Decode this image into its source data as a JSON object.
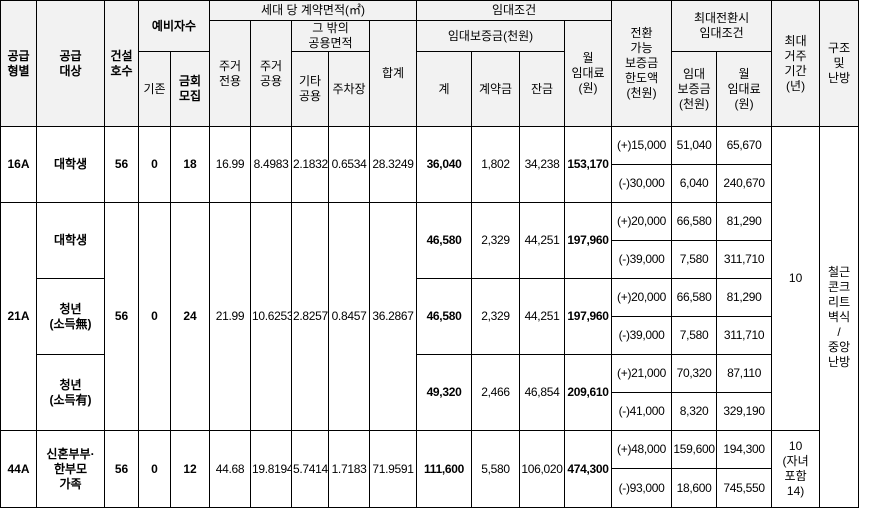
{
  "headers": {
    "supply_type": "공급\n형별",
    "supply_target": "공급\n대상",
    "built_units": "건설\n호수",
    "reserve": "예비자수",
    "reserve_existing": "기존",
    "reserve_this": "금회\n모집",
    "area_group": "세대 당 계약면적(㎡)",
    "residential_exclusive": "주거\n전용",
    "residential_common": "주거\n공용",
    "other_common_group": "그 밖의\n공용면적",
    "other_common": "기타\n공용",
    "parking": "주차장",
    "area_total": "합계",
    "lease_group": "임대조건",
    "deposit_group": "임대보증금(천원)",
    "deposit_total": "계",
    "deposit_contract": "계약금",
    "deposit_balance": "잔금",
    "monthly_rent": "월\n임대료\n(원)",
    "convertible_limit": "전환\n가능\n보증금\n한도액\n(천원)",
    "max_conversion_group": "최대전환시\n임대조건",
    "conv_deposit": "임대\n보증금\n(천원)",
    "conv_rent": "월\n임대료\n(원)",
    "max_residence": "최대\n거주\n기간\n(년)",
    "structure": "구조\n및\n난방"
  },
  "rows": [
    {
      "type": "16A",
      "units": "56",
      "reserve_existing": "0",
      "reserve_this": "18",
      "area": {
        "exclusive": "16.99",
        "common": "8.4983",
        "other": "2.1832",
        "parking": "0.6534",
        "total": "28.3249"
      },
      "targets": [
        {
          "name": "대학생",
          "deposit": "36,040",
          "contract": "1,802",
          "balance": "34,238",
          "rent": "153,170",
          "conversions": [
            {
              "limit": "(+)15,000",
              "deposit": "51,040",
              "rent": "65,670"
            },
            {
              "limit": "(-)30,000",
              "deposit": "6,040",
              "rent": "240,670"
            }
          ]
        }
      ]
    },
    {
      "type": "21A",
      "units": "56",
      "reserve_existing": "0",
      "reserve_this": "24",
      "area": {
        "exclusive": "21.99",
        "common": "10.6253",
        "other": "2.8257",
        "parking": "0.8457",
        "total": "36.2867"
      },
      "targets": [
        {
          "name": "대학생",
          "deposit": "46,580",
          "contract": "2,329",
          "balance": "44,251",
          "rent": "197,960",
          "conversions": [
            {
              "limit": "(+)20,000",
              "deposit": "66,580",
              "rent": "81,290"
            },
            {
              "limit": "(-)39,000",
              "deposit": "7,580",
              "rent": "311,710"
            }
          ]
        },
        {
          "name": "청년\n(소득無)",
          "deposit": "46,580",
          "contract": "2,329",
          "balance": "44,251",
          "rent": "197,960",
          "conversions": [
            {
              "limit": "(+)20,000",
              "deposit": "66,580",
              "rent": "81,290"
            },
            {
              "limit": "(-)39,000",
              "deposit": "7,580",
              "rent": "311,710"
            }
          ]
        },
        {
          "name": "청년\n(소득有)",
          "deposit": "49,320",
          "contract": "2,466",
          "balance": "46,854",
          "rent": "209,610",
          "conversions": [
            {
              "limit": "(+)21,000",
              "deposit": "70,320",
              "rent": "87,110"
            },
            {
              "limit": "(-)41,000",
              "deposit": "8,320",
              "rent": "329,190"
            }
          ]
        }
      ]
    },
    {
      "type": "44A",
      "units": "56",
      "reserve_existing": "0",
      "reserve_this": "12",
      "area": {
        "exclusive": "44.68",
        "common": "19.8194",
        "other": "5.7414",
        "parking": "1.7183",
        "total": "71.9591"
      },
      "targets": [
        {
          "name": "신혼부부·\n한부모\n가족",
          "deposit": "111,600",
          "contract": "5,580",
          "balance": "106,020",
          "rent": "474,300",
          "conversions": [
            {
              "limit": "(+)48,000",
              "deposit": "159,600",
              "rent": "194,300"
            },
            {
              "limit": "(-)93,000",
              "deposit": "18,600",
              "rent": "745,550"
            }
          ]
        }
      ]
    }
  ],
  "max_residence_main": "10",
  "max_residence_44A": "10\n(자녀\n포함\n14)",
  "structure_value": "철근\n콘크\n리트\n벽식\n/\n중앙\n난방",
  "colors": {
    "highlight_border": "#ff0000",
    "header_bg": "#f2f2f2"
  }
}
